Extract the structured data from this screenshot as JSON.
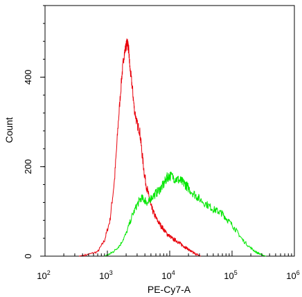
{
  "chart_data": {
    "type": "line",
    "xlabel": "PE-Cy7-A",
    "ylabel": "Count",
    "x_scale": "log",
    "xlim": [
      100,
      1000000
    ],
    "ylim": [
      0,
      560
    ],
    "x_ticks": [
      {
        "value": 100,
        "base": "10",
        "exp": "2"
      },
      {
        "value": 1000,
        "base": "10",
        "exp": "3"
      },
      {
        "value": 10000,
        "base": "10",
        "exp": "4"
      },
      {
        "value": 100000,
        "base": "10",
        "exp": "5"
      },
      {
        "value": 1000000,
        "base": "10",
        "exp": "6"
      }
    ],
    "y_ticks": [
      {
        "value": 0,
        "label": "0"
      },
      {
        "value": 200,
        "label": "200"
      },
      {
        "value": 400,
        "label": "400"
      }
    ],
    "y_minor_step": 40,
    "grid": false,
    "series": [
      {
        "color": "#e8000b",
        "x": [
          350,
          500,
          700,
          900,
          1100,
          1300,
          1500,
          1700,
          1850,
          2000,
          2100,
          2200,
          2300,
          2500,
          2700,
          3000,
          3300,
          3600,
          4000,
          4500,
          5000,
          5600,
          6300,
          7100,
          8000,
          9000,
          10000,
          11200,
          12600,
          14100,
          15800,
          17800,
          20000,
          22400,
          25100,
          28200,
          31600
        ],
        "y": [
          0,
          4,
          10,
          35,
          80,
          170,
          300,
          400,
          450,
          470,
          480,
          460,
          420,
          380,
          330,
          295,
          280,
          230,
          175,
          140,
          110,
          95,
          80,
          70,
          60,
          50,
          45,
          38,
          35,
          30,
          25,
          20,
          15,
          10,
          6,
          3,
          0
        ]
      },
      {
        "color": "#00e600",
        "x": [
          900,
          1100,
          1300,
          1600,
          2000,
          2500,
          3000,
          3500,
          4000,
          4500,
          5000,
          6000,
          7000,
          8000,
          9000,
          10000,
          12000,
          14000,
          16000,
          18000,
          20000,
          25000,
          30000,
          40000,
          50000,
          60000,
          70000,
          80000,
          100000,
          120000,
          150000,
          200000,
          250000,
          300000,
          350000
        ],
        "y": [
          0,
          5,
          12,
          25,
          50,
          90,
          115,
          130,
          125,
          118,
          130,
          140,
          150,
          160,
          175,
          180,
          175,
          170,
          165,
          160,
          152,
          138,
          128,
          115,
          105,
          100,
          95,
          85,
          70,
          55,
          35,
          18,
          8,
          3,
          0
        ]
      }
    ]
  }
}
